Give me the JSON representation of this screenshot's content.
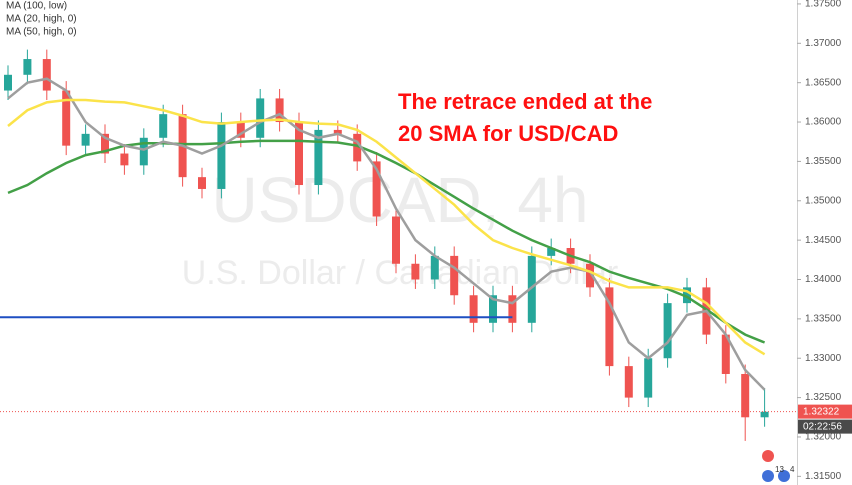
{
  "chart_data": {
    "type": "candlestick",
    "symbol_watermark": "USDCAD, 4h",
    "description_watermark": "U.S. Dollar / Canadian Dollar",
    "annotation": [
      "The retrace ended at the",
      "20 SMA for USD/CAD"
    ],
    "up_color": "#26a69a",
    "down_color": "#ef5350",
    "candles": {
      "open": [
        1.364,
        1.366,
        1.368,
        1.364,
        1.357,
        1.3585,
        1.356,
        1.3545,
        1.358,
        1.361,
        1.353,
        1.3515,
        1.36,
        1.358,
        1.363,
        1.36,
        1.352,
        1.359,
        1.3585,
        1.355,
        1.348,
        1.342,
        1.34,
        1.343,
        1.338,
        1.3345,
        1.338,
        1.3345,
        1.343,
        1.344,
        1.342,
        1.339,
        1.329,
        1.325,
        1.33,
        1.337,
        1.339,
        1.333,
        1.328,
        1.3225
      ],
      "high": [
        1.3672,
        1.3692,
        1.3692,
        1.3652,
        1.3597,
        1.3597,
        1.3572,
        1.3592,
        1.3622,
        1.3622,
        1.3542,
        1.3612,
        1.3612,
        1.3642,
        1.3642,
        1.3612,
        1.3602,
        1.3602,
        1.3597,
        1.3562,
        1.3492,
        1.3432,
        1.3442,
        1.3442,
        1.3392,
        1.3392,
        1.3392,
        1.3442,
        1.3452,
        1.3452,
        1.3432,
        1.3402,
        1.3302,
        1.3312,
        1.3382,
        1.3402,
        1.3402,
        1.3342,
        1.3292,
        1.3262
      ],
      "low": [
        1.3628,
        1.3648,
        1.3628,
        1.3558,
        1.3558,
        1.3548,
        1.3533,
        1.3533,
        1.3568,
        1.3518,
        1.3503,
        1.3503,
        1.3568,
        1.3568,
        1.3588,
        1.3508,
        1.3508,
        1.3573,
        1.3538,
        1.3468,
        1.3408,
        1.3388,
        1.3388,
        1.3368,
        1.3333,
        1.3333,
        1.3333,
        1.3333,
        1.3418,
        1.3408,
        1.3378,
        1.3278,
        1.3238,
        1.3238,
        1.3288,
        1.3358,
        1.3318,
        1.3268,
        1.3195,
        1.3213
      ],
      "close": [
        1.366,
        1.368,
        1.364,
        1.357,
        1.3585,
        1.356,
        1.3545,
        1.358,
        1.361,
        1.353,
        1.3515,
        1.36,
        1.358,
        1.363,
        1.36,
        1.352,
        1.359,
        1.3585,
        1.355,
        1.348,
        1.342,
        1.34,
        1.343,
        1.338,
        1.3345,
        1.338,
        1.3345,
        1.343,
        1.344,
        1.342,
        1.339,
        1.329,
        1.325,
        1.33,
        1.337,
        1.339,
        1.333,
        1.328,
        1.3225,
        1.3232
      ]
    },
    "series": [
      {
        "name": "MA (100, low)",
        "color": "#43a047",
        "values": [
          1.351,
          1.352,
          1.3535,
          1.3548,
          1.3558,
          1.3563,
          1.357,
          1.3573,
          1.3573,
          1.3572,
          1.3572,
          1.3573,
          1.3575,
          1.3576,
          1.3576,
          1.3576,
          1.3575,
          1.3574,
          1.357,
          1.356,
          1.3548,
          1.3535,
          1.352,
          1.3505,
          1.349,
          1.3476,
          1.3462,
          1.345,
          1.344,
          1.343,
          1.3422,
          1.341,
          1.3402,
          1.3395,
          1.3388,
          1.3378,
          1.3362,
          1.3345,
          1.333,
          1.332
        ]
      },
      {
        "name": "MA (20, high, 0)",
        "color": "#9e9e9e",
        "values": [
          1.363,
          1.365,
          1.3655,
          1.364,
          1.36,
          1.358,
          1.357,
          1.3565,
          1.3575,
          1.357,
          1.356,
          1.357,
          1.3585,
          1.36,
          1.361,
          1.359,
          1.358,
          1.3585,
          1.3575,
          1.354,
          1.349,
          1.345,
          1.343,
          1.3415,
          1.3395,
          1.3375,
          1.337,
          1.339,
          1.341,
          1.3415,
          1.341,
          1.337,
          1.332,
          1.33,
          1.332,
          1.3355,
          1.336,
          1.333,
          1.3285,
          1.326
        ]
      },
      {
        "name": "MA (50, high, 0)",
        "color": "#fbe34a",
        "values": [
          1.3595,
          1.3615,
          1.3625,
          1.3628,
          1.3628,
          1.3626,
          1.3625,
          1.362,
          1.3615,
          1.3608,
          1.36,
          1.3598,
          1.36,
          1.3602,
          1.3603,
          1.36,
          1.3598,
          1.3597,
          1.359,
          1.3575,
          1.3555,
          1.3535,
          1.3515,
          1.3495,
          1.347,
          1.345,
          1.344,
          1.3432,
          1.3425,
          1.3418,
          1.341,
          1.3398,
          1.339,
          1.339,
          1.339,
          1.3385,
          1.337,
          1.3345,
          1.332,
          1.3305
        ]
      }
    ],
    "hline": {
      "value": 1.3352,
      "color": "#1e4fc2",
      "end_index": 26
    },
    "last_price": 1.32322,
    "countdown": "02:22:56",
    "event_badges": [
      "13",
      "4"
    ],
    "ylim": [
      1.3139,
      1.3755
    ],
    "yticks": [
      {
        "value": 1.375,
        "label": "1.37500"
      },
      {
        "value": 1.37,
        "label": "1.37000"
      },
      {
        "value": 1.365,
        "label": "1.36500"
      },
      {
        "value": 1.36,
        "label": "1.36000"
      },
      {
        "value": 1.355,
        "label": "1.35500"
      },
      {
        "value": 1.35,
        "label": "1.35000"
      },
      {
        "value": 1.345,
        "label": "1.34500"
      },
      {
        "value": 1.34,
        "label": "1.34000"
      },
      {
        "value": 1.335,
        "label": "1.33500"
      },
      {
        "value": 1.33,
        "label": "1.33000"
      },
      {
        "value": 1.325,
        "label": "1.32500"
      },
      {
        "value": 1.32,
        "label": "1.32000"
      },
      {
        "value": 1.315,
        "label": "1.31500"
      }
    ]
  }
}
